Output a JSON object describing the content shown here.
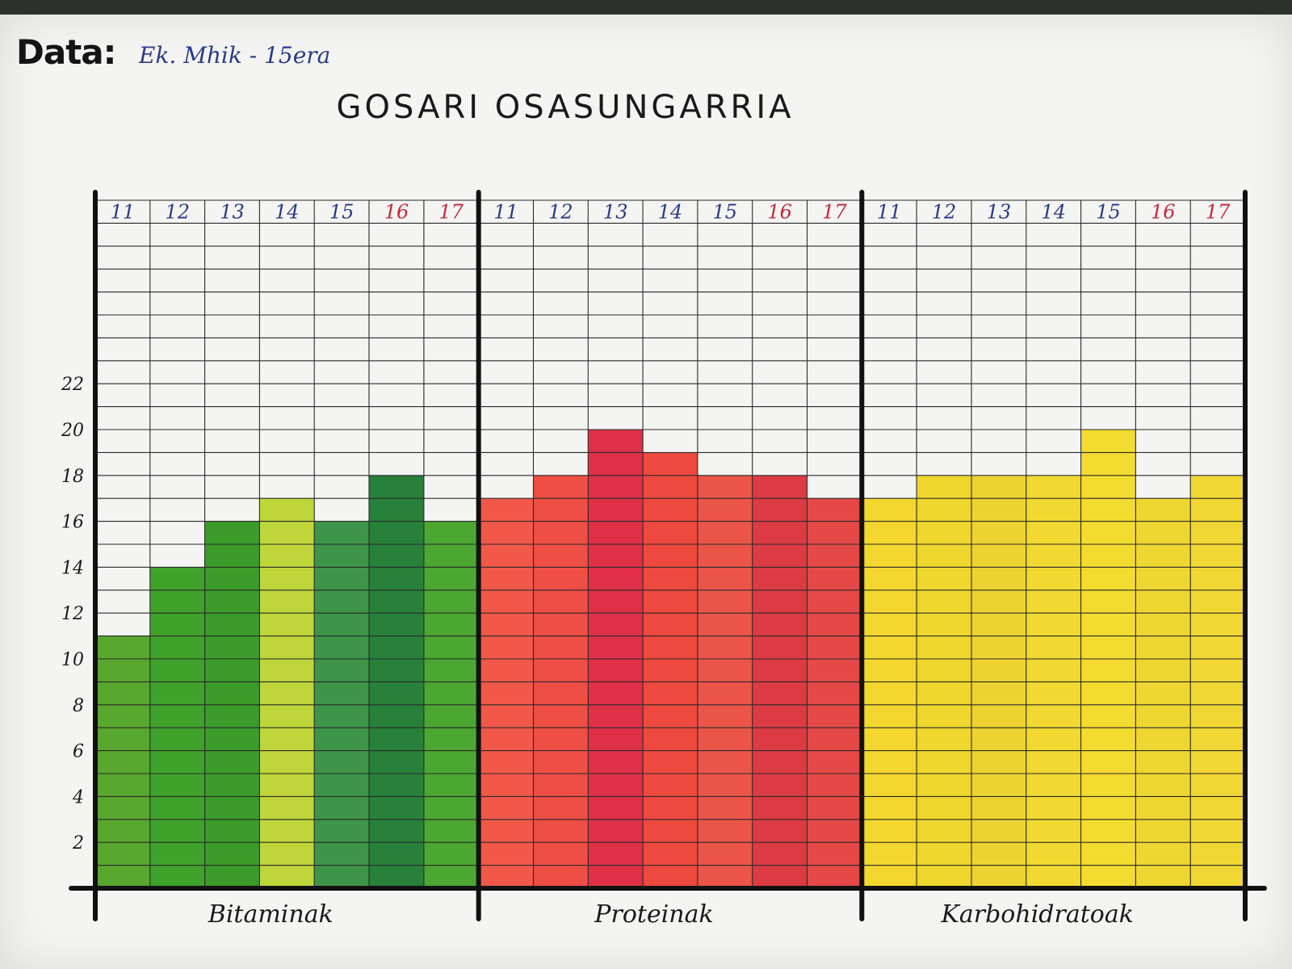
{
  "header": {
    "date_label": "Data:",
    "date_value": "Ek. Mhik - 15era",
    "title": "GOSARI OSASUNGARRIA"
  },
  "chart_data": {
    "type": "bar",
    "title": "GOSARI OSASUNGARRIA",
    "xlabel": "",
    "ylabel": "",
    "ylim": [
      0,
      22
    ],
    "yticks": [
      2,
      4,
      6,
      8,
      10,
      12,
      14,
      16,
      18,
      20,
      22
    ],
    "grid": true,
    "day_labels": [
      "11",
      "12",
      "13",
      "14",
      "15",
      "16",
      "17"
    ],
    "weekday_color": "#2a3b8a",
    "weekend_color": "#c8283c",
    "groups": [
      {
        "name": "Bitaminak",
        "values": [
          11,
          14,
          16,
          17,
          16,
          18,
          16
        ],
        "colors": [
          "#4aa01e",
          "#2f9a1a",
          "#2a9418",
          "#b9d22a",
          "#2e8c3c",
          "#15762a",
          "#3c9e22"
        ]
      },
      {
        "name": "Proteinak",
        "values": [
          17,
          18,
          20,
          19,
          18,
          18,
          17
        ],
        "colors": [
          "#f04a3c",
          "#ee3f36",
          "#dc1e3a",
          "#ec3a30",
          "#e8463a",
          "#d92a34",
          "#e23a3a"
        ]
      },
      {
        "name": "Karbohidratoak",
        "values": [
          17,
          18,
          18,
          18,
          20,
          17,
          18
        ],
        "colors": [
          "#f2d41e",
          "#eed41c",
          "#eccf22",
          "#f0d622",
          "#f3d820",
          "#eed422",
          "#f0d424"
        ]
      }
    ]
  }
}
